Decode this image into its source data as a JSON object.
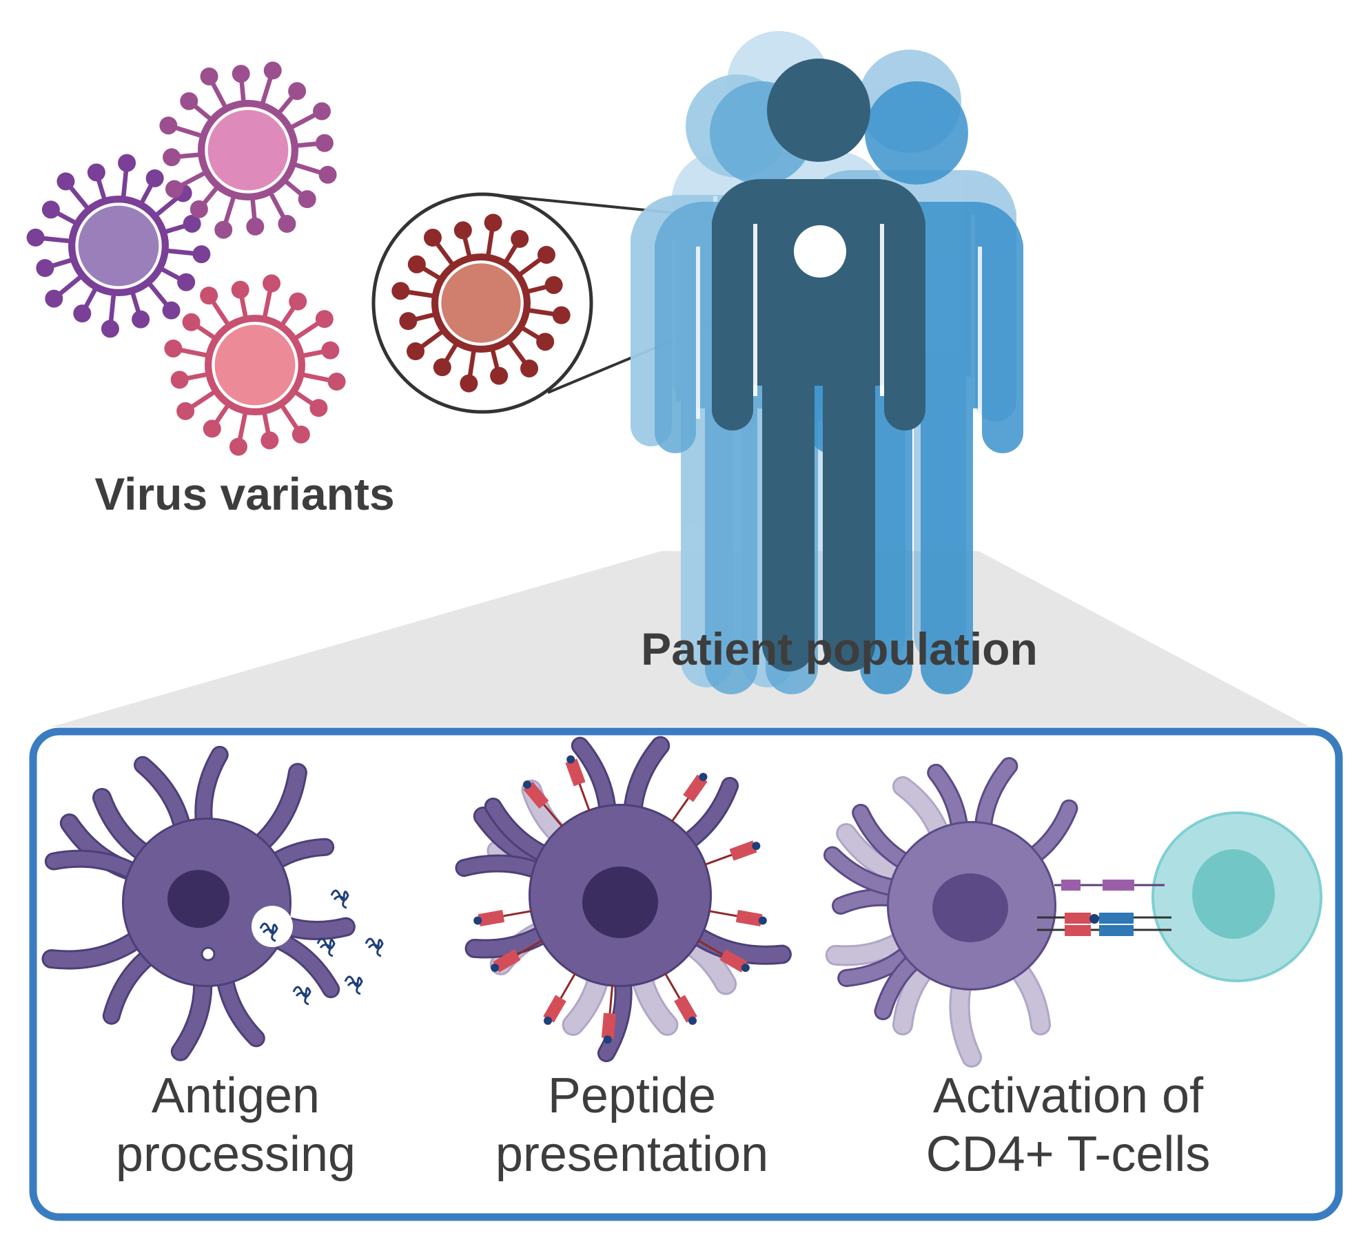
{
  "labels": {
    "virus_variants": "Virus variants",
    "patient_population": "Patient population",
    "antigen_processing_line1": "Antigen",
    "antigen_processing_line2": "processing",
    "peptide_presentation_line1": "Peptide",
    "peptide_presentation_line2": "presentation",
    "activation_line1": "Activation of",
    "activation_line2": "CD4+ T-cells"
  },
  "colors": {
    "virus_purple": "#7a3f96",
    "virus_purple_core": "#9b7fba",
    "virus_magenta": "#9c4f8f",
    "virus_magenta_core": "#de8bbb",
    "virus_rose": "#c85070",
    "virus_rose_core": "#ec8a98",
    "virus_red": "#8e2a2a",
    "virus_red_core": "#d07e6e",
    "person_dark": "#35607a",
    "person_blue_light": "#9fcbe6",
    "person_blue_mid": "#63a9d6",
    "person_blue_strong": "#3c93cc",
    "panel_border": "#3a7cc0",
    "cell_purple": "#6e5c96",
    "cell_nucleus": "#3b2d60",
    "cell_light": "#c9c1d8",
    "mhc_red": "#d44e5a",
    "tcr_blue": "#2f78b5",
    "tcell_outer": "#aee0e3",
    "tcell_inner": "#72c6c6",
    "text": "#3d3d3d"
  }
}
